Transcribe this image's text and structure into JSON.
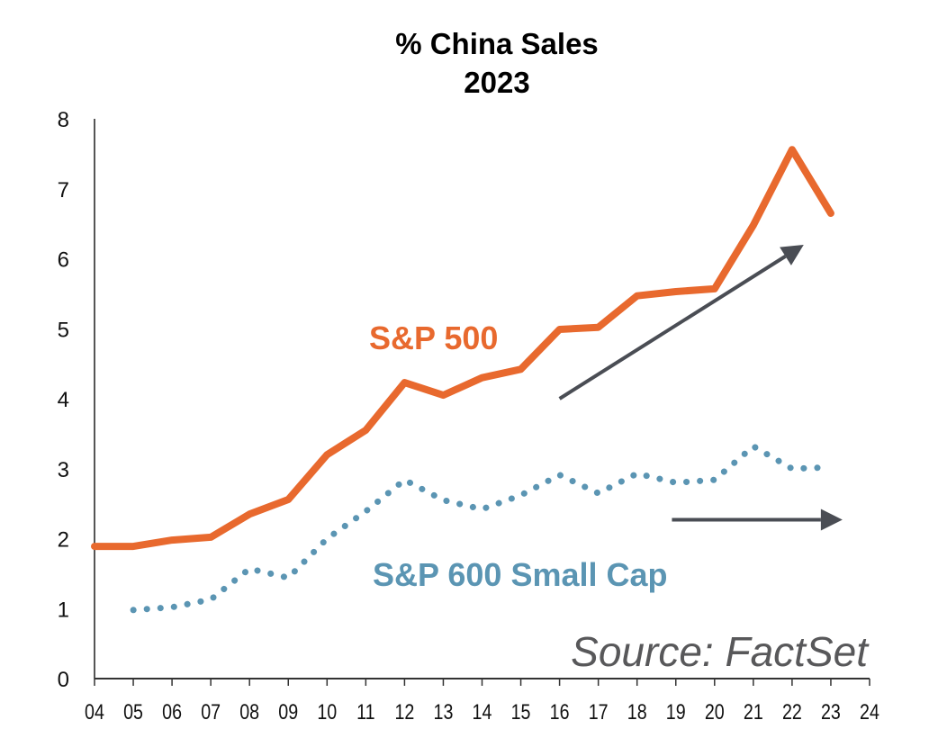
{
  "chart_data": {
    "type": "line",
    "title": "% China Sales",
    "subtitle": "2023",
    "xlabel": "",
    "ylabel": "",
    "x": [
      "04",
      "05",
      "06",
      "07",
      "08",
      "09",
      "10",
      "11",
      "12",
      "13",
      "14",
      "15",
      "16",
      "17",
      "18",
      "19",
      "20",
      "21",
      "22",
      "23"
    ],
    "x_ticks": [
      "04",
      "05",
      "06",
      "07",
      "08",
      "09",
      "10",
      "11",
      "12",
      "13",
      "14",
      "15",
      "16",
      "17",
      "18",
      "19",
      "20",
      "21",
      "22",
      "23",
      "24"
    ],
    "y_ticks": [
      "0",
      "1",
      "2",
      "3",
      "4",
      "5",
      "6",
      "7",
      "8"
    ],
    "ylim": [
      0,
      8
    ],
    "xlim": [
      "04",
      "24"
    ],
    "grid": false,
    "series": [
      {
        "name": "S&P 500",
        "style": "solid",
        "color": "#e8692e",
        "values": [
          1.89,
          1.89,
          1.98,
          2.02,
          2.35,
          2.56,
          3.2,
          3.55,
          4.23,
          4.05,
          4.3,
          4.42,
          4.99,
          5.02,
          5.47,
          5.53,
          5.57,
          6.48,
          7.56,
          6.65
        ]
      },
      {
        "name": "S&P 600 Small Cap",
        "style": "dotted",
        "color": "#5b95b3",
        "values": [
          null,
          0.98,
          1.02,
          1.13,
          1.57,
          1.44,
          2.0,
          2.39,
          2.84,
          2.55,
          2.42,
          2.62,
          2.91,
          2.65,
          2.93,
          2.8,
          2.84,
          3.32,
          3.0,
          3.02
        ]
      }
    ],
    "annotations": [
      {
        "type": "arrow",
        "label": "upward-trend-arrow",
        "from": {
          "x": "16",
          "y": 4.0
        },
        "to": {
          "x": "22.3",
          "y": 6.2
        },
        "color": "#4a4d54"
      },
      {
        "type": "arrow",
        "label": "flat-trend-arrow",
        "from": {
          "x": "18.9",
          "y": 2.27
        },
        "to": {
          "x": "23.3",
          "y": 2.27
        },
        "color": "#4a4d54"
      },
      {
        "type": "text",
        "text": "Source: FactSet",
        "position": "bottom-right"
      }
    ],
    "series_labels": [
      {
        "text": "S&P 500",
        "series": 0
      },
      {
        "text": "S&P 600 Small Cap",
        "series": 1
      }
    ]
  },
  "source_text": "Source: FactSet"
}
